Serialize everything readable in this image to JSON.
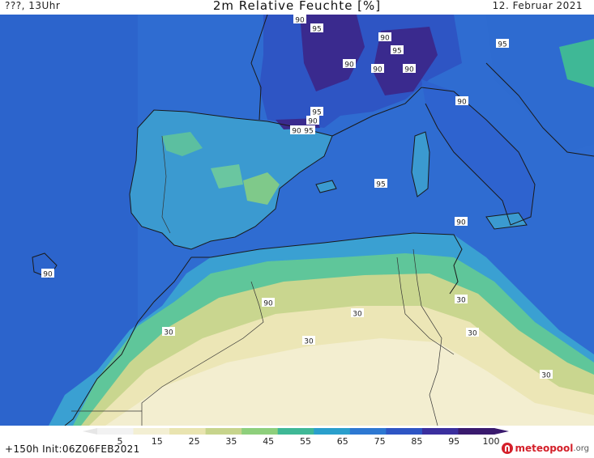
{
  "header": {
    "left_label": "???, 13Uhr",
    "title": "2m Relative Feuchte [%]",
    "date": "12. Februar 2021"
  },
  "footer": {
    "init_label": "+150h Init:06Z06FEB2021",
    "logo_name": "meteopool",
    "logo_tld": ".org"
  },
  "legend": {
    "ticks": [
      "5",
      "15",
      "25",
      "35",
      "45",
      "55",
      "65",
      "75",
      "85",
      "95",
      "100"
    ],
    "colors": [
      "#f2f2f2",
      "#f3efd3",
      "#e9e4b0",
      "#c7d48c",
      "#8ecf7c",
      "#3fb896",
      "#2a9fcc",
      "#2d78d2",
      "#2e55c4",
      "#3b2f9e",
      "#3a1a6e"
    ]
  },
  "map": {
    "colors": {
      "sea": "#2f6cd1",
      "sea_deep": "#2b58c0",
      "humid_dark": "#3a2a8e",
      "land_wet": "#3aa0d2",
      "land_green": "#5fc69a",
      "desert_green": "#c9d68f",
      "desert_pale": "#ece6b6",
      "desert_light": "#f3eed0",
      "coast": "#1a1a1a"
    },
    "contour_labels": [
      "90",
      "95",
      "90",
      "95",
      "95",
      "90",
      "90",
      "90",
      "90",
      "95",
      "90",
      "95",
      "90",
      "95",
      "90",
      "90",
      "90",
      "30",
      "30",
      "30",
      "30",
      "30",
      "30"
    ]
  }
}
